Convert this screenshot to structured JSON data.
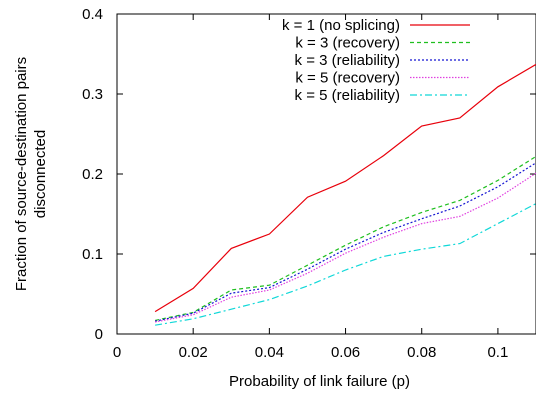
{
  "chart_data": {
    "type": "line",
    "title": "",
    "xlabel": "Probability of link failure (p)",
    "ylabel_lines": [
      "Fraction of source-destination pairs",
      "disconnected"
    ],
    "xlim": [
      0,
      0.11
    ],
    "ylim": [
      0,
      0.4
    ],
    "x_ticks": [
      0,
      0.02,
      0.04,
      0.06,
      0.08,
      0.1
    ],
    "x_tick_labels": [
      "0",
      "0.02",
      "0.04",
      "0.06",
      "0.08",
      "0.1"
    ],
    "y_ticks": [
      0,
      0.1,
      0.2,
      0.3,
      0.4
    ],
    "y_tick_labels": [
      "0",
      "0.1",
      "0.2",
      "0.3",
      "0.4"
    ],
    "grid": false,
    "legend_position": "top-right",
    "x": [
      0.01,
      0.02,
      0.03,
      0.04,
      0.05,
      0.06,
      0.07,
      0.08,
      0.09,
      0.1,
      0.11
    ],
    "series": [
      {
        "name": "k = 1 (no splicing)",
        "color": "#e8000b",
        "dash": "",
        "values": [
          0.028,
          0.057,
          0.107,
          0.125,
          0.171,
          0.191,
          0.223,
          0.26,
          0.27,
          0.309,
          0.337
        ]
      },
      {
        "name": "k = 3 (recovery)",
        "color": "#1fbf1f",
        "dash": "4,3",
        "values": [
          0.017,
          0.027,
          0.055,
          0.061,
          0.086,
          0.111,
          0.134,
          0.152,
          0.167,
          0.192,
          0.222
        ]
      },
      {
        "name": "k = 3 (reliability)",
        "color": "#1414d2",
        "dash": "2,2",
        "values": [
          0.016,
          0.026,
          0.051,
          0.058,
          0.081,
          0.106,
          0.127,
          0.144,
          0.16,
          0.184,
          0.214
        ]
      },
      {
        "name": "k = 5 (recovery)",
        "color": "#e040e0",
        "dash": "1.5,1.5",
        "values": [
          0.015,
          0.024,
          0.046,
          0.055,
          0.076,
          0.101,
          0.121,
          0.138,
          0.147,
          0.17,
          0.201
        ]
      },
      {
        "name": "k = 5 (reliability)",
        "color": "#10d8d8",
        "dash": "7,3,2,3",
        "values": [
          0.011,
          0.019,
          0.031,
          0.043,
          0.06,
          0.08,
          0.097,
          0.106,
          0.113,
          0.138,
          0.163
        ]
      }
    ]
  }
}
